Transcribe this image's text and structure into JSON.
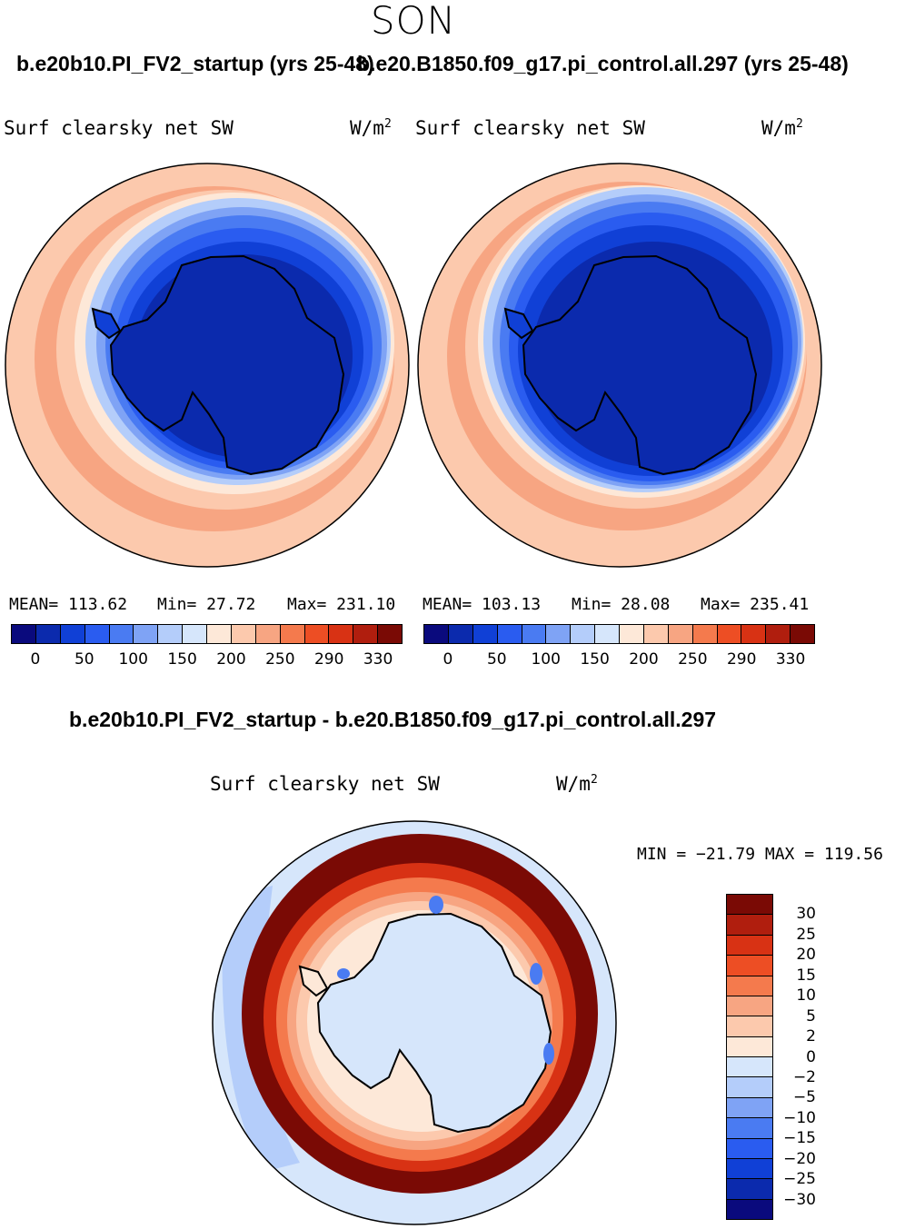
{
  "page": {
    "season": "SON",
    "top_left_case": "b.e20b10.PI_FV2_startup (yrs 25-48)",
    "top_right_case": "b.e20.B1850.f09_g17.pi_control.all.297 (yrs 25-48)",
    "diff_title": "b.e20b10.PI_FV2_startup - b.e20.B1850.f09_g17.pi_control.all.297"
  },
  "colors": {
    "abs_scale": [
      "#0a0a7d",
      "#0b2aad",
      "#1040d6",
      "#2a5cf0",
      "#4a7bf2",
      "#7fa3f5",
      "#b4cdfa",
      "#d6e6fb",
      "#fde8d8",
      "#fcc9ad",
      "#f7a582",
      "#f47a4d",
      "#ed4e24",
      "#d83214",
      "#b01e0e",
      "#7a0a05"
    ],
    "diff_scale": [
      "#7a0a05",
      "#b01e0e",
      "#d83214",
      "#ed4e24",
      "#f47a4d",
      "#f7a582",
      "#fcc9ad",
      "#fde8d8",
      "#d6e6fb",
      "#b4cdfa",
      "#7fa3f5",
      "#4a7bf2",
      "#2a5cf0",
      "#1040d6",
      "#0b2aad",
      "#0a0a7d"
    ]
  },
  "chart_data": [
    {
      "type": "heatmap",
      "panel": "top-left",
      "projection": "south polar stereographic",
      "title": "Surf clearsky net SW",
      "units": "W/m2",
      "units_label": "W/m",
      "units_exp": "2",
      "mean": 113.62,
      "min": 27.72,
      "max": 231.1,
      "mean_text": "MEAN= 113.62",
      "min_text": "Min=  27.72",
      "max_text": "Max= 231.10",
      "colorbar_ticks": [
        "0",
        "50",
        "100",
        "150",
        "200",
        "250",
        "290",
        "330"
      ]
    },
    {
      "type": "heatmap",
      "panel": "top-right",
      "projection": "south polar stereographic",
      "title": "Surf clearsky net SW",
      "units": "W/m2",
      "units_label": "W/m",
      "units_exp": "2",
      "mean": 103.13,
      "min": 28.08,
      "max": 235.41,
      "mean_text": "MEAN= 103.13",
      "min_text": "Min=  28.08",
      "max_text": "Max= 235.41",
      "colorbar_ticks": [
        "0",
        "50",
        "100",
        "150",
        "200",
        "250",
        "290",
        "330"
      ]
    },
    {
      "type": "heatmap",
      "panel": "bottom-difference",
      "projection": "south polar stereographic",
      "title": "Surf clearsky net SW",
      "units": "W/m2",
      "units_label": "W/m",
      "units_exp": "2",
      "min": -21.79,
      "max": 119.56,
      "minmax_text": "MIN = −21.79 MAX = 119.56",
      "colorbar_ticks": [
        "30",
        "25",
        "20",
        "15",
        "10",
        "5",
        "2",
        "0",
        "−2",
        "−5",
        "−10",
        "−15",
        "−20",
        "−25",
        "−30"
      ]
    }
  ]
}
